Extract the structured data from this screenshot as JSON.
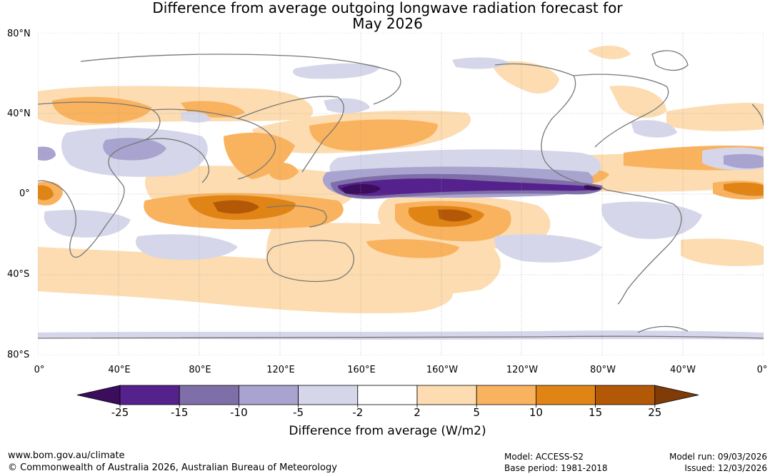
{
  "title_line1": "Difference from average outgoing longwave radiation forecast for",
  "title_line2": "May 2026",
  "latitude_labels": [
    "80°N",
    "40°N",
    "0°",
    "40°S",
    "80°S"
  ],
  "longitude_labels": [
    "0°",
    "40°E",
    "80°E",
    "120°E",
    "160°E",
    "160°W",
    "120°W",
    "80°W",
    "40°W",
    "0°"
  ],
  "colorbar": {
    "ticks": [
      "-25",
      "-15",
      "-10",
      "-5",
      "-2",
      "2",
      "5",
      "10",
      "15",
      "25"
    ],
    "colors": [
      "#3c0d5c",
      "#55218d",
      "#7e6fa9",
      "#a9a3cf",
      "#d6d6ea",
      "#ffffff",
      "#fcdcb0",
      "#f9b25d",
      "#e08416",
      "#b35806",
      "#7f3b08"
    ],
    "label": "Difference from average (W/m2)"
  },
  "footer": {
    "website": "www.bom.gov.au/climate",
    "copyright": "© Commonwealth of Australia 2026, Australian Bureau of Meteorology",
    "model": "Model: ACCESS-S2",
    "base_period": "Base period: 1981-2018",
    "model_run": "Model run: 09/03/2026",
    "issued": "Issued: 12/03/2026"
  }
}
